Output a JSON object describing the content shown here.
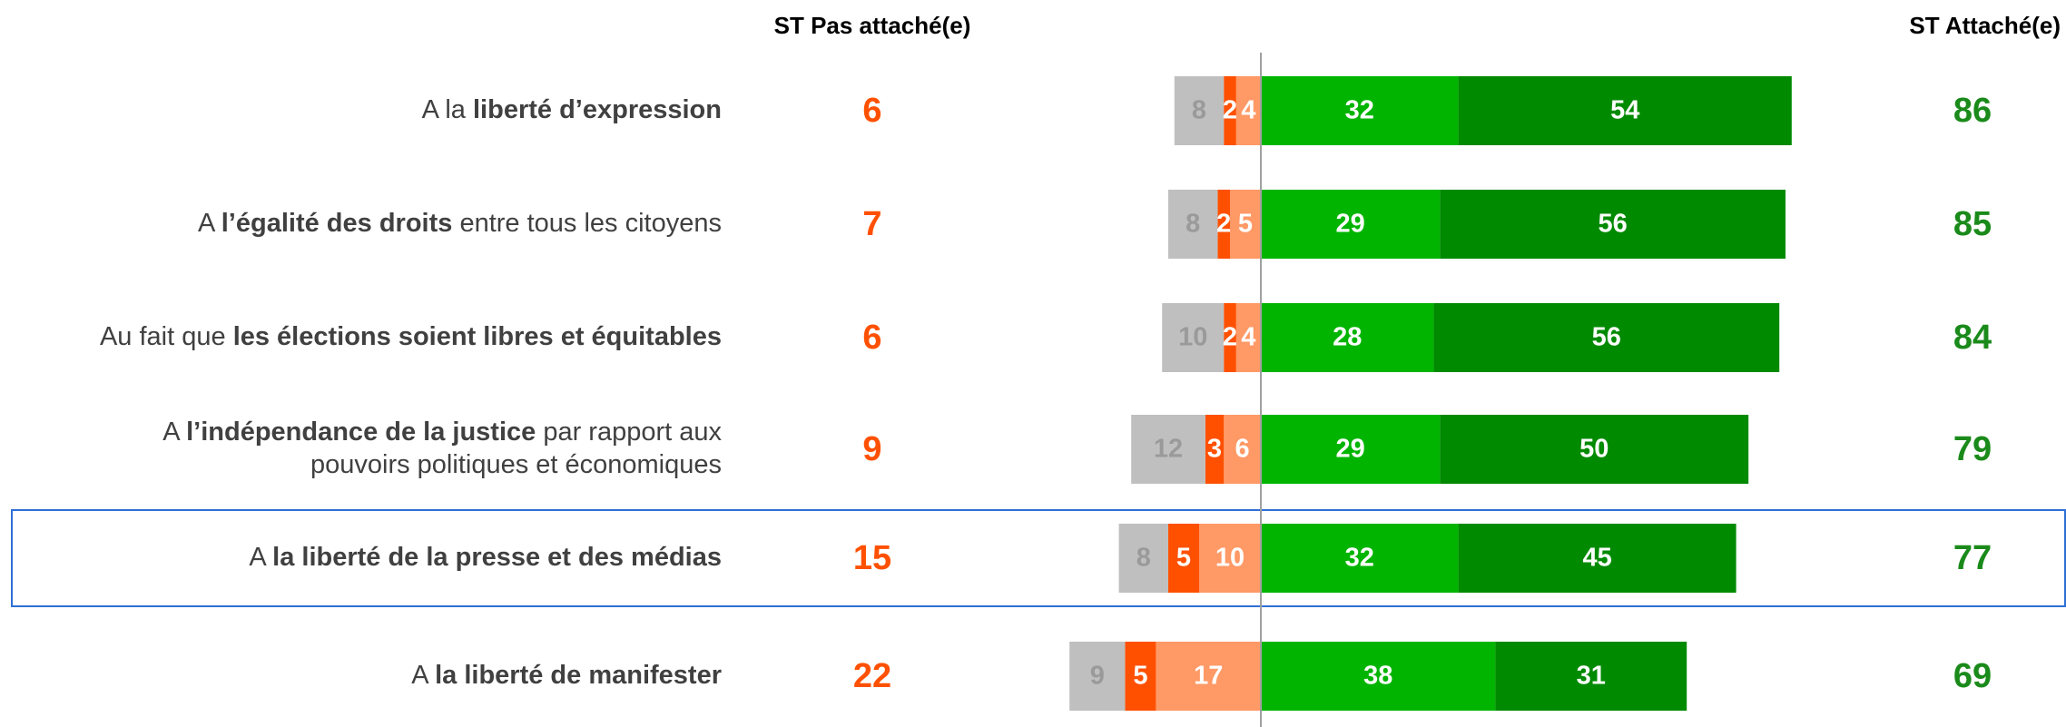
{
  "chart_data": {
    "type": "diverging_bar",
    "categories": [
      [
        [
          "A la ",
          "liberté d’expression"
        ]
      ],
      [
        [
          "A ",
          "l’égalité des droits",
          " entre tous les citoyens"
        ]
      ],
      [
        [
          "Au fait que ",
          "les élections soient libres et équitables"
        ]
      ],
      [
        [
          "A ",
          "l’indépendance de la justice",
          " par rapport aux"
        ],
        [
          "pouvoirs politiques et économiques"
        ]
      ],
      [
        [
          "A ",
          "la liberté de la presse et des médias"
        ]
      ],
      [
        [
          "A ",
          "la liberté de manifester"
        ]
      ]
    ],
    "series": [
      {
        "color": "#ff9966",
        "label_color": "#ffffff",
        "side": "left",
        "values": [
          4,
          5,
          4,
          6,
          10,
          17
        ]
      },
      {
        "color": "#ff5000",
        "label_color": "#ffffff",
        "side": "left",
        "values": [
          2,
          2,
          2,
          3,
          5,
          5
        ]
      },
      {
        "color": "#bfbfbf",
        "label_color": "#9a9a9a",
        "side": "left",
        "values": [
          8,
          8,
          10,
          12,
          8,
          9
        ]
      },
      {
        "color": "#00b400",
        "label_color": "#ffffff",
        "side": "right",
        "values": [
          32,
          29,
          28,
          29,
          32,
          38
        ]
      },
      {
        "color": "#008a00",
        "label_color": "#ffffff",
        "side": "right",
        "values": [
          54,
          56,
          56,
          50,
          45,
          31
        ]
      }
    ],
    "totals": [
      {
        "title": "ST Pas attaché(e)",
        "color": "#ff5000",
        "values": [
          6,
          7,
          6,
          9,
          15,
          22
        ]
      },
      {
        "title": "ST Attaché(e)",
        "color": "#1a8a1a",
        "values": [
          86,
          85,
          84,
          79,
          77,
          69
        ]
      }
    ],
    "highlight_row": 4
  }
}
